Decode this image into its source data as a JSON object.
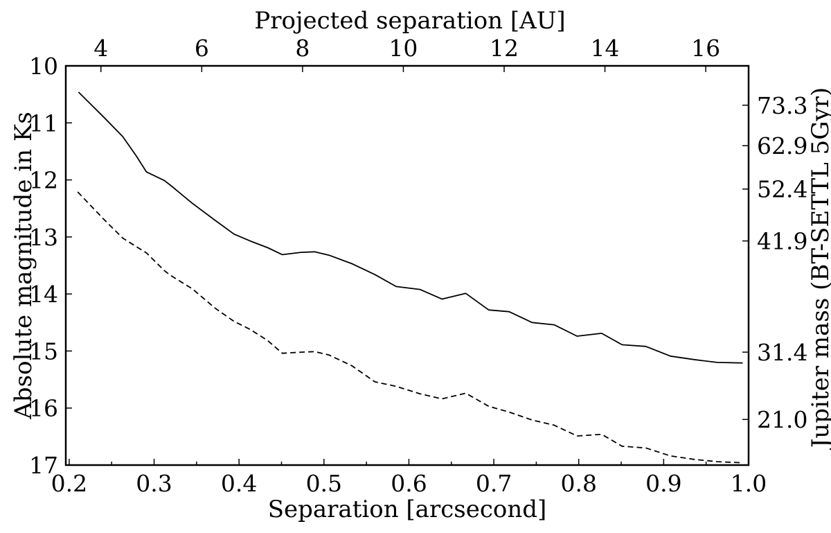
{
  "figure": {
    "background_color": "#ffffff",
    "foreground_color": "#000000"
  },
  "axes": {
    "top": {
      "title": "Projected separation [AU]",
      "tick_labels": [
        "4",
        "6",
        "8",
        "10",
        "12",
        "14",
        "16"
      ],
      "tick_values_au": [
        4,
        6,
        8,
        10,
        12,
        14,
        16
      ],
      "au_per_arcsec": 16.85
    },
    "bottom": {
      "title": "Separation [arcsecond]",
      "tick_labels": [
        "0.2",
        "0.3",
        "0.4",
        "0.5",
        "0.6",
        "0.7",
        "0.8",
        "0.9",
        "1.0"
      ],
      "tick_values": [
        0.2,
        0.3,
        0.4,
        0.5,
        0.6,
        0.7,
        0.8,
        0.9,
        1.0
      ],
      "minor_tick_values": [
        0.25,
        0.35,
        0.45,
        0.55,
        0.65,
        0.75,
        0.85,
        0.95
      ],
      "range": [
        0.196,
        1.0
      ]
    },
    "left": {
      "title": "Absolute magnitude in Ks",
      "tick_labels": [
        "10",
        "11",
        "12",
        "13",
        "14",
        "15",
        "16",
        "17"
      ],
      "tick_values": [
        10,
        11,
        12,
        13,
        14,
        15,
        16,
        17
      ],
      "range": [
        10,
        17
      ],
      "inverted": true
    },
    "right": {
      "title": "Jupiter mass (BT-SETTL 5Gyr)",
      "ticks": [
        {
          "label": "73.3",
          "mag_position": 10.69
        },
        {
          "label": "62.9",
          "mag_position": 11.4
        },
        {
          "label": "52.4",
          "mag_position": 12.16
        },
        {
          "label": "41.9",
          "mag_position": 13.07
        },
        {
          "label": "31.4",
          "mag_position": 15.02
        },
        {
          "label": "21.0",
          "mag_position": 16.2
        }
      ]
    }
  },
  "chart_data": {
    "type": "line",
    "title": "",
    "xlabel": "Separation [arcsecond]",
    "xlabel_top": "Projected separation [AU]",
    "ylabel": "Absolute magnitude in Ks",
    "ylabel_right": "Jupiter mass (BT-SETTL 5Gyr)",
    "xlim": [
      0.196,
      1.0
    ],
    "ylim_mag_top_to_bottom": [
      10,
      17
    ],
    "grid": false,
    "legend_position": "none",
    "series": [
      {
        "name": "solid-line",
        "line_style": "solid",
        "line_width": 1.8,
        "color": "#000000",
        "x": [
          0.211,
          0.24,
          0.263,
          0.279,
          0.291,
          0.312,
          0.319,
          0.345,
          0.372,
          0.394,
          0.413,
          0.434,
          0.451,
          0.473,
          0.489,
          0.506,
          0.533,
          0.56,
          0.585,
          0.613,
          0.639,
          0.667,
          0.694,
          0.718,
          0.745,
          0.771,
          0.798,
          0.827,
          0.851,
          0.879,
          0.908,
          0.936,
          0.963,
          0.993
        ],
        "y_mag": [
          10.46,
          10.89,
          11.24,
          11.58,
          11.86,
          12.01,
          12.09,
          12.41,
          12.71,
          12.95,
          13.07,
          13.19,
          13.31,
          13.27,
          13.26,
          13.32,
          13.47,
          13.66,
          13.87,
          13.92,
          14.09,
          13.99,
          14.28,
          14.31,
          14.5,
          14.54,
          14.74,
          14.69,
          14.89,
          14.92,
          15.09,
          15.15,
          15.2,
          15.21
        ]
      },
      {
        "name": "dashed-line",
        "line_style": "dashed",
        "line_width": 1.8,
        "dash_pattern": [
          8,
          5
        ],
        "color": "#000000",
        "x": [
          0.21,
          0.24,
          0.263,
          0.279,
          0.291,
          0.312,
          0.319,
          0.345,
          0.372,
          0.394,
          0.413,
          0.434,
          0.451,
          0.473,
          0.489,
          0.506,
          0.533,
          0.56,
          0.585,
          0.613,
          0.639,
          0.667,
          0.694,
          0.718,
          0.745,
          0.771,
          0.798,
          0.827,
          0.851,
          0.879,
          0.908,
          0.936,
          0.963,
          0.993
        ],
        "y_mag": [
          12.21,
          12.68,
          13.02,
          13.17,
          13.28,
          13.59,
          13.67,
          13.91,
          14.25,
          14.48,
          14.62,
          14.82,
          15.04,
          15.02,
          15.01,
          15.07,
          15.26,
          15.54,
          15.62,
          15.75,
          15.84,
          15.74,
          15.97,
          16.07,
          16.21,
          16.3,
          16.49,
          16.46,
          16.67,
          16.7,
          16.84,
          16.9,
          16.94,
          16.96
        ]
      }
    ]
  }
}
